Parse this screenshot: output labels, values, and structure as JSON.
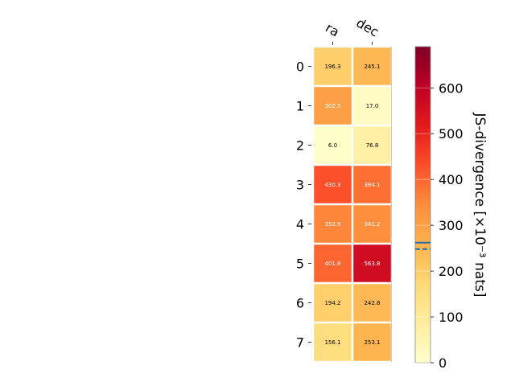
{
  "chart_data": {
    "type": "heatmap",
    "columns": [
      "ra",
      "dec"
    ],
    "rows": [
      "0",
      "1",
      "2",
      "3",
      "4",
      "5",
      "6",
      "7"
    ],
    "values": [
      [
        196.3,
        245.1
      ],
      [
        302.5,
        17.0
      ],
      [
        6.0,
        76.8
      ],
      [
        430.3,
        384.1
      ],
      [
        353.9,
        341.2
      ],
      [
        401.8,
        563.8
      ],
      [
        194.2,
        242.8
      ],
      [
        156.1,
        253.1
      ]
    ],
    "colorbar": {
      "label": "JS-divergence [×10⁻³ nats]",
      "range": [
        0,
        690
      ],
      "ticks": [
        0,
        100,
        200,
        300,
        400,
        500,
        600
      ],
      "colormap": "YlOrRd",
      "reference_lines": [
        {
          "value": 262,
          "style": "solid"
        },
        {
          "value": 248,
          "style": "dashed"
        }
      ]
    }
  }
}
